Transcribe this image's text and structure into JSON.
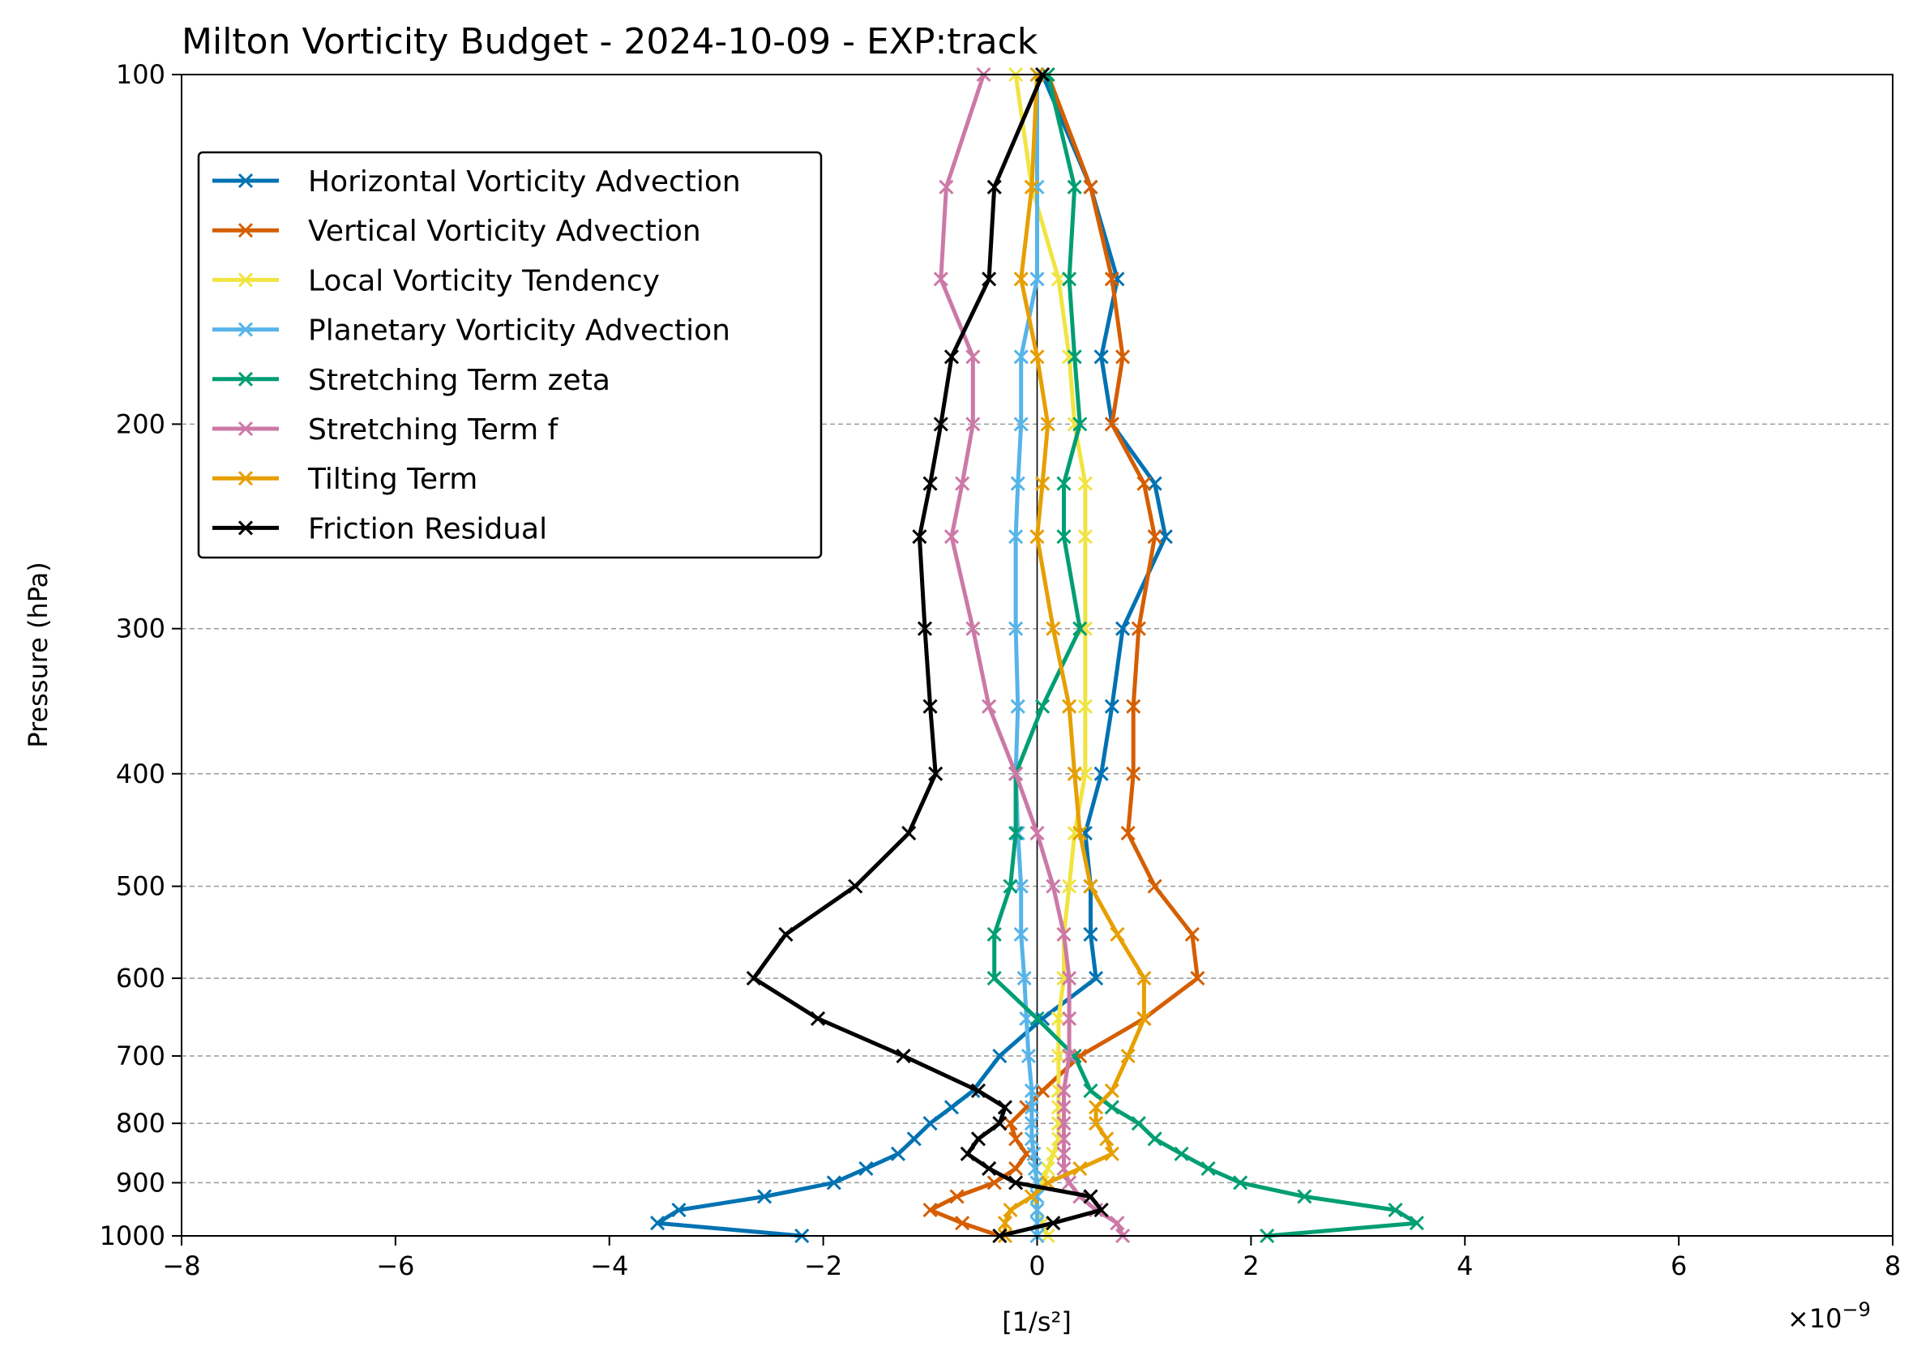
{
  "chart_data": {
    "type": "line",
    "title": "Milton Vorticity Budget - 2024-10-09 - EXP:track",
    "xlabel": "[1/s²]",
    "ylabel": "Pressure (hPa)",
    "x_multiplier": "×10",
    "x_multiplier_exp": "−9",
    "xlim": [
      -8,
      8
    ],
    "ylim": [
      1000,
      100
    ],
    "y_scale": "log",
    "x_ticks": [
      {
        "value": -8,
        "label": "−8"
      },
      {
        "value": -6,
        "label": "−6"
      },
      {
        "value": -4,
        "label": "−4"
      },
      {
        "value": -2,
        "label": "−2"
      },
      {
        "value": 0,
        "label": "0"
      },
      {
        "value": 2,
        "label": "2"
      },
      {
        "value": 4,
        "label": "4"
      },
      {
        "value": 6,
        "label": "6"
      },
      {
        "value": 8,
        "label": "8"
      }
    ],
    "y_ticks": [
      {
        "value": 100,
        "label": "100"
      },
      {
        "value": 200,
        "label": "200"
      },
      {
        "value": 300,
        "label": "300"
      },
      {
        "value": 400,
        "label": "400"
      },
      {
        "value": 500,
        "label": "500"
      },
      {
        "value": 600,
        "label": "600"
      },
      {
        "value": 700,
        "label": "700"
      },
      {
        "value": 800,
        "label": "800"
      },
      {
        "value": 900,
        "label": "900"
      },
      {
        "value": 1000,
        "label": "1000"
      }
    ],
    "grid_y": true,
    "legend_position": "upper-left",
    "pressure_levels": [
      1000,
      975,
      950,
      925,
      900,
      875,
      850,
      825,
      800,
      775,
      750,
      700,
      650,
      600,
      550,
      500,
      450,
      400,
      350,
      300,
      250,
      225,
      200,
      175,
      150,
      125,
      100
    ],
    "series": [
      {
        "name": "Horizontal Vorticity Advection",
        "color": "#0072B2",
        "values": [
          -2.2,
          -3.55,
          -3.35,
          -2.55,
          -1.9,
          -1.6,
          -1.3,
          -1.15,
          -1.0,
          -0.8,
          -0.6,
          -0.35,
          0.05,
          0.55,
          0.5,
          0.5,
          0.45,
          0.6,
          0.7,
          0.8,
          1.2,
          1.1,
          0.7,
          0.6,
          0.75,
          0.5,
          0.05
        ]
      },
      {
        "name": "Vertical Vorticity Advection",
        "color": "#D55E00",
        "values": [
          -0.35,
          -0.7,
          -1.0,
          -0.75,
          -0.4,
          -0.2,
          -0.1,
          -0.2,
          -0.25,
          -0.1,
          0.05,
          0.4,
          1.0,
          1.5,
          1.45,
          1.1,
          0.85,
          0.9,
          0.9,
          0.95,
          1.1,
          1.0,
          0.7,
          0.8,
          0.7,
          0.5,
          0.1
        ]
      },
      {
        "name": "Local Vorticity Tendency",
        "color": "#F0E442",
        "values": [
          0.1,
          0.05,
          0.0,
          -0.05,
          0.05,
          0.1,
          0.15,
          0.2,
          0.2,
          0.2,
          0.2,
          0.2,
          0.2,
          0.25,
          0.25,
          0.3,
          0.35,
          0.45,
          0.45,
          0.45,
          0.45,
          0.45,
          0.35,
          0.3,
          0.2,
          -0.05,
          -0.2
        ]
      },
      {
        "name": "Planetary Vorticity Advection",
        "color": "#56B4E9",
        "values": [
          0.0,
          0.0,
          0.0,
          0.0,
          0.0,
          -0.02,
          -0.03,
          -0.05,
          -0.05,
          -0.05,
          -0.05,
          -0.08,
          -0.1,
          -0.12,
          -0.15,
          -0.15,
          -0.18,
          -0.2,
          -0.18,
          -0.2,
          -0.2,
          -0.18,
          -0.15,
          -0.15,
          0.0,
          0.0,
          0.0
        ]
      },
      {
        "name": "Stretching Term zeta",
        "color": "#009E73",
        "values": [
          2.15,
          3.55,
          3.35,
          2.5,
          1.9,
          1.6,
          1.35,
          1.1,
          0.95,
          0.7,
          0.5,
          0.35,
          0.0,
          -0.4,
          -0.4,
          -0.25,
          -0.2,
          -0.2,
          0.05,
          0.4,
          0.25,
          0.25,
          0.4,
          0.35,
          0.3,
          0.35,
          0.1
        ]
      },
      {
        "name": "Stretching Term f",
        "color": "#CC79A7",
        "values": [
          0.8,
          0.75,
          0.55,
          0.4,
          0.3,
          0.25,
          0.25,
          0.25,
          0.25,
          0.25,
          0.25,
          0.3,
          0.3,
          0.3,
          0.25,
          0.15,
          0.0,
          -0.2,
          -0.45,
          -0.6,
          -0.8,
          -0.7,
          -0.6,
          -0.6,
          -0.9,
          -0.85,
          -0.5
        ]
      },
      {
        "name": "Tilting Term",
        "color": "#E69F00",
        "values": [
          -0.3,
          -0.3,
          -0.25,
          -0.05,
          0.1,
          0.4,
          0.7,
          0.65,
          0.55,
          0.55,
          0.7,
          0.85,
          1.0,
          1.0,
          0.75,
          0.5,
          0.4,
          0.35,
          0.3,
          0.15,
          0.0,
          0.05,
          0.1,
          0.0,
          -0.15,
          -0.05,
          0.0
        ]
      },
      {
        "name": "Friction Residual",
        "color": "#000000",
        "values": [
          -0.35,
          0.15,
          0.6,
          0.5,
          -0.2,
          -0.45,
          -0.65,
          -0.55,
          -0.35,
          -0.3,
          -0.55,
          -1.25,
          -2.05,
          -2.65,
          -2.35,
          -1.7,
          -1.2,
          -0.95,
          -1.0,
          -1.05,
          -1.1,
          -1.0,
          -0.9,
          -0.8,
          -0.45,
          -0.4,
          0.05
        ]
      }
    ]
  }
}
